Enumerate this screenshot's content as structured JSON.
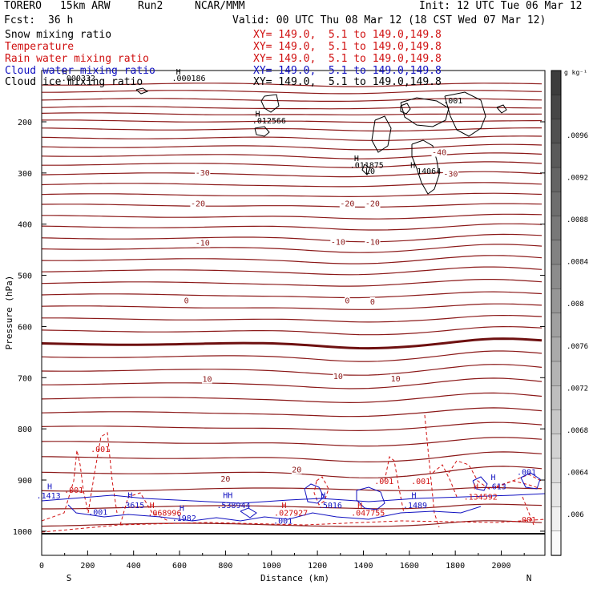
{
  "header": {
    "model": "TORERO",
    "resolution": "15km ARW",
    "run": "Run2",
    "org": "NCAR/MMM",
    "init": "Init: 12 UTC Tue 06 Mar 12",
    "fcst_label": "Fcst:",
    "fcst_value": "36 h",
    "valid": "Valid: 00 UTC Thu 08 Mar 12 (18 CST Wed 07 Mar 12)"
  },
  "fields": [
    {
      "name": "Snow mixing ratio",
      "xy": "XY= 149.0,  5.1 to 149.0,149.8",
      "color": "#000000"
    },
    {
      "name": "Temperature",
      "xy": "XY= 149.0,  5.1 to 149.0,149.8",
      "color": "#d01010"
    },
    {
      "name": "Rain water mixing ratio",
      "xy": "XY= 149.0,  5.1 to 149.0,149.8",
      "color": "#d01010"
    },
    {
      "name": "Cloud water mixing ratio",
      "xy": "XY= 149.0,  5.1 to 149.0,149.8",
      "color": "#1010c0"
    },
    {
      "name": "Cloud ice mixing ratio",
      "xy": "XY= 149.0,  5.1 to 149.0,149.8",
      "color": "#000000"
    }
  ],
  "chart_data": {
    "type": "contour-cross-section",
    "xlabel": "Distance (km)",
    "ylabel": "Pressure (hPa)",
    "xlim": [
      0,
      2190
    ],
    "ylim": [
      1045,
      100
    ],
    "x_ticks": [
      0,
      200,
      400,
      600,
      800,
      1000,
      1200,
      1400,
      1600,
      1800,
      2000
    ],
    "y_ticks": [
      200,
      300,
      400,
      500,
      600,
      700,
      800,
      900,
      1000
    ],
    "left_end": "S",
    "right_end": "N",
    "colorbar": {
      "unit": "g kg⁻¹",
      "labels": [
        ".0096",
        ".0092",
        ".0088",
        ".0084",
        ".008",
        ".0076",
        ".0072",
        ".0068",
        ".0064",
        ".006"
      ]
    },
    "isotherm_labels": [
      {
        "text": "-30",
        "x": 700,
        "p": 305
      },
      {
        "text": "-30",
        "x": 1780,
        "p": 307
      },
      {
        "text": "-20",
        "x": 680,
        "p": 365
      },
      {
        "text": "-20",
        "x": 1330,
        "p": 365
      },
      {
        "text": "-20",
        "x": 1440,
        "p": 365
      },
      {
        "text": "-10",
        "x": 700,
        "p": 442
      },
      {
        "text": "-10",
        "x": 1290,
        "p": 440
      },
      {
        "text": "-10",
        "x": 1440,
        "p": 440
      },
      {
        "text": "0",
        "x": 630,
        "p": 555
      },
      {
        "text": "0",
        "x": 1330,
        "p": 555
      },
      {
        "text": "0",
        "x": 1440,
        "p": 557
      },
      {
        "text": "10",
        "x": 720,
        "p": 708
      },
      {
        "text": "10",
        "x": 1290,
        "p": 703
      },
      {
        "text": "10",
        "x": 1540,
        "p": 707
      },
      {
        "text": "20",
        "x": 800,
        "p": 903
      },
      {
        "text": "20",
        "x": 1110,
        "p": 885
      },
      {
        "text": "-40",
        "x": 1730,
        "p": 265
      }
    ],
    "cloud_ice_labels": [
      {
        "text": "H",
        "x": 100,
        "p": 108
      },
      {
        "text": ".000332",
        "x": 160,
        "p": 120
      },
      {
        "text": "H",
        "x": 595,
        "p": 108
      },
      {
        "text": ".000186",
        "x": 640,
        "p": 120
      },
      {
        "text": "H",
        "x": 940,
        "p": 190
      },
      {
        "text": ".012566",
        "x": 990,
        "p": 203
      },
      {
        "text": "H",
        "x": 1370,
        "p": 277
      },
      {
        "text": ".011875",
        "x": 1415,
        "p": 290
      },
      {
        "text": "H",
        "x": 1615,
        "p": 290
      },
      {
        "text": "14064",
        "x": 1685,
        "p": 302
      },
      {
        "text": ".001",
        "x": 1790,
        "p": 164
      },
      {
        "text": "L0",
        "x": 1430,
        "p": 302
      }
    ],
    "cloud_water_labels": [
      {
        "text": "H",
        "x": 35,
        "p": 918
      },
      {
        "text": ".1413",
        "x": 30,
        "p": 936
      },
      {
        "text": "H",
        "x": 385,
        "p": 935
      },
      {
        "text": ".3615",
        "x": 395,
        "p": 955
      },
      {
        "text": ".001",
        "x": 245,
        "p": 968
      },
      {
        "text": "H",
        "x": 610,
        "p": 960
      },
      {
        "text": ".1982",
        "x": 620,
        "p": 980
      },
      {
        "text": "HH",
        "x": 810,
        "p": 935
      },
      {
        "text": ".538944",
        "x": 835,
        "p": 955
      },
      {
        "text": ".001",
        "x": 1050,
        "p": 985
      },
      {
        "text": "H",
        "x": 1225,
        "p": 935
      },
      {
        "text": ".5016",
        "x": 1255,
        "p": 955
      },
      {
        "text": "H",
        "x": 1620,
        "p": 935
      },
      {
        "text": ".1489",
        "x": 1625,
        "p": 955
      },
      {
        "text": "H",
        "x": 1965,
        "p": 900
      },
      {
        "text": ".613",
        "x": 1980,
        "p": 918
      },
      {
        "text": ".001",
        "x": 2110,
        "p": 890
      }
    ],
    "rain_labels": [
      {
        "text": ".001",
        "x": 255,
        "p": 845
      },
      {
        "text": ".001",
        "x": 140,
        "p": 925
      },
      {
        "text": "H",
        "x": 480,
        "p": 955
      },
      {
        "text": ".068996",
        "x": 535,
        "p": 970
      },
      {
        "text": "H",
        "x": 1055,
        "p": 955
      },
      {
        "text": ".027927",
        "x": 1085,
        "p": 970
      },
      {
        "text": "H",
        "x": 1385,
        "p": 955
      },
      {
        "text": ".047755",
        "x": 1420,
        "p": 970
      },
      {
        "text": ".001",
        "x": 1490,
        "p": 908
      },
      {
        "text": ".001",
        "x": 1650,
        "p": 908
      },
      {
        "text": "H",
        "x": 1890,
        "p": 918
      },
      {
        "text": ".134592",
        "x": 1910,
        "p": 938
      },
      {
        "text": ".001",
        "x": 2110,
        "p": 983
      }
    ]
  }
}
